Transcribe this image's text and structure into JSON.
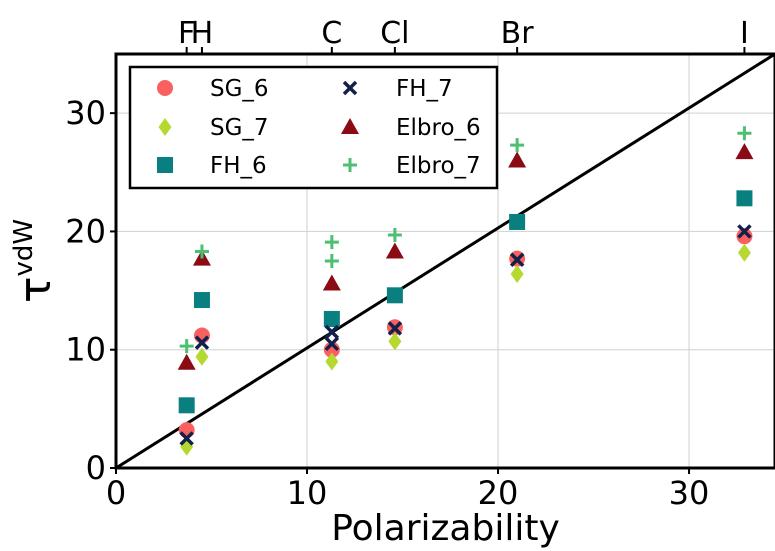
{
  "chart_data": {
    "type": "scatter",
    "xlabel": "Polarizability",
    "ylabel": "τ",
    "ylabel_superscript": "vdW",
    "xlim": [
      0,
      34.5
    ],
    "ylim": [
      0,
      35
    ],
    "xticks": [
      0,
      10,
      20,
      30
    ],
    "yticks": [
      0,
      10,
      20,
      30
    ],
    "grid": true,
    "legend_position": "upper-left",
    "top_axis_labels": [
      {
        "label": "F",
        "x": 3.7
      },
      {
        "label": "H",
        "x": 4.5
      },
      {
        "label": "C",
        "x": 11.3
      },
      {
        "label": "Cl",
        "x": 14.6
      },
      {
        "label": "Br",
        "x": 21.0
      },
      {
        "label": "I",
        "x": 32.9
      }
    ],
    "reference_line": {
      "from": [
        0,
        0
      ],
      "to": [
        34.5,
        35
      ],
      "color": "#000000"
    },
    "series": [
      {
        "name": "SG_6",
        "marker": "circle",
        "color": "#fa6060",
        "points": [
          [
            3.7,
            3.2
          ],
          [
            4.5,
            11.2
          ],
          [
            11.3,
            10.0
          ],
          [
            14.6,
            11.9
          ],
          [
            21.0,
            17.7
          ],
          [
            32.9,
            19.6
          ]
        ]
      },
      {
        "name": "SG_7",
        "marker": "diamond",
        "color": "#b6d930",
        "points": [
          [
            3.7,
            1.8
          ],
          [
            4.5,
            9.4
          ],
          [
            11.3,
            9.0
          ],
          [
            14.6,
            10.7
          ],
          [
            21.0,
            16.4
          ],
          [
            32.9,
            18.2
          ]
        ]
      },
      {
        "name": "FH_6",
        "marker": "square",
        "color": "#0a7f7f",
        "points": [
          [
            3.7,
            5.3
          ],
          [
            4.5,
            14.2
          ],
          [
            11.3,
            12.6
          ],
          [
            14.6,
            14.6
          ],
          [
            21.0,
            20.8
          ],
          [
            32.9,
            22.8
          ]
        ]
      },
      {
        "name": "FH_7",
        "marker": "x",
        "color": "#12204a",
        "points": [
          [
            3.7,
            2.5
          ],
          [
            4.5,
            10.6
          ],
          [
            11.3,
            11.5
          ],
          [
            11.3,
            10.5
          ],
          [
            14.6,
            11.8
          ],
          [
            21.0,
            17.6
          ],
          [
            32.9,
            20.0
          ]
        ]
      },
      {
        "name": "Elbro_6",
        "marker": "triangle",
        "color": "#8b0a14",
        "points": [
          [
            3.7,
            8.9
          ],
          [
            4.5,
            17.7
          ],
          [
            11.3,
            15.6
          ],
          [
            14.6,
            18.3
          ],
          [
            21.0,
            26.0
          ],
          [
            32.9,
            26.7
          ]
        ]
      },
      {
        "name": "Elbro_7",
        "marker": "plus",
        "color": "#4cbf72",
        "points": [
          [
            3.7,
            10.3
          ],
          [
            4.5,
            18.3
          ],
          [
            11.3,
            19.1
          ],
          [
            11.3,
            17.5
          ],
          [
            14.6,
            19.7
          ],
          [
            21.0,
            27.3
          ],
          [
            32.9,
            28.3
          ]
        ]
      }
    ]
  }
}
